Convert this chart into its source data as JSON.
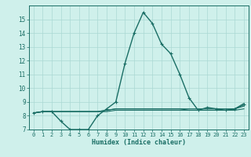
{
  "title": "",
  "xlabel": "Humidex (Indice chaleur)",
  "bg_color": "#cff0eb",
  "grid_color": "#aad8d3",
  "line_color": "#1a6e65",
  "xlim": [
    -0.5,
    23.5
  ],
  "ylim": [
    7,
    16
  ],
  "xticks": [
    0,
    1,
    2,
    3,
    4,
    5,
    6,
    7,
    8,
    9,
    10,
    11,
    12,
    13,
    14,
    15,
    16,
    17,
    18,
    19,
    20,
    21,
    22,
    23
  ],
  "yticks": [
    7,
    8,
    9,
    10,
    11,
    12,
    13,
    14,
    15
  ],
  "lines": [
    {
      "x": [
        0,
        1,
        2,
        3,
        4,
        5,
        6,
        7,
        8,
        9,
        10,
        11,
        12,
        13,
        14,
        15,
        16,
        17,
        18,
        19,
        20,
        21,
        22,
        23
      ],
      "y": [
        8.2,
        8.3,
        8.3,
        7.6,
        7.0,
        7.0,
        7.0,
        8.0,
        8.5,
        9.0,
        11.8,
        14.0,
        15.5,
        14.7,
        13.2,
        12.5,
        11.0,
        9.3,
        8.4,
        8.6,
        8.5,
        8.4,
        8.5,
        8.8
      ],
      "marker": true,
      "lw": 1.0
    },
    {
      "x": [
        0,
        1,
        2,
        3,
        4,
        5,
        6,
        7,
        8,
        9,
        10,
        11,
        12,
        13,
        14,
        15,
        16,
        17,
        18,
        19,
        20,
        21,
        22,
        23
      ],
      "y": [
        8.2,
        8.3,
        8.3,
        8.3,
        8.3,
        8.3,
        8.3,
        8.3,
        8.4,
        8.5,
        8.5,
        8.5,
        8.5,
        8.5,
        8.5,
        8.5,
        8.5,
        8.5,
        8.5,
        8.5,
        8.5,
        8.5,
        8.5,
        8.7
      ],
      "marker": false,
      "lw": 0.8
    },
    {
      "x": [
        0,
        1,
        2,
        3,
        4,
        5,
        6,
        7,
        8,
        9,
        10,
        11,
        12,
        13,
        14,
        15,
        16,
        17,
        18,
        19,
        20,
        21,
        22,
        23
      ],
      "y": [
        8.2,
        8.3,
        8.3,
        8.3,
        8.3,
        8.3,
        8.3,
        8.3,
        8.3,
        8.4,
        8.4,
        8.4,
        8.4,
        8.4,
        8.4,
        8.4,
        8.4,
        8.4,
        8.4,
        8.4,
        8.4,
        8.4,
        8.4,
        8.5
      ],
      "marker": false,
      "lw": 0.8
    },
    {
      "x": [
        0,
        1,
        2,
        3,
        4,
        5,
        6,
        7,
        8,
        9,
        10,
        11,
        12,
        13,
        14,
        15,
        16,
        17,
        18,
        19,
        20,
        21,
        22,
        23
      ],
      "y": [
        8.2,
        8.3,
        8.3,
        8.3,
        8.3,
        8.3,
        8.3,
        8.3,
        8.4,
        8.5,
        8.5,
        8.5,
        8.5,
        8.5,
        8.5,
        8.5,
        8.5,
        8.4,
        8.4,
        8.4,
        8.4,
        8.4,
        8.5,
        8.9
      ],
      "marker": false,
      "lw": 0.8
    }
  ]
}
